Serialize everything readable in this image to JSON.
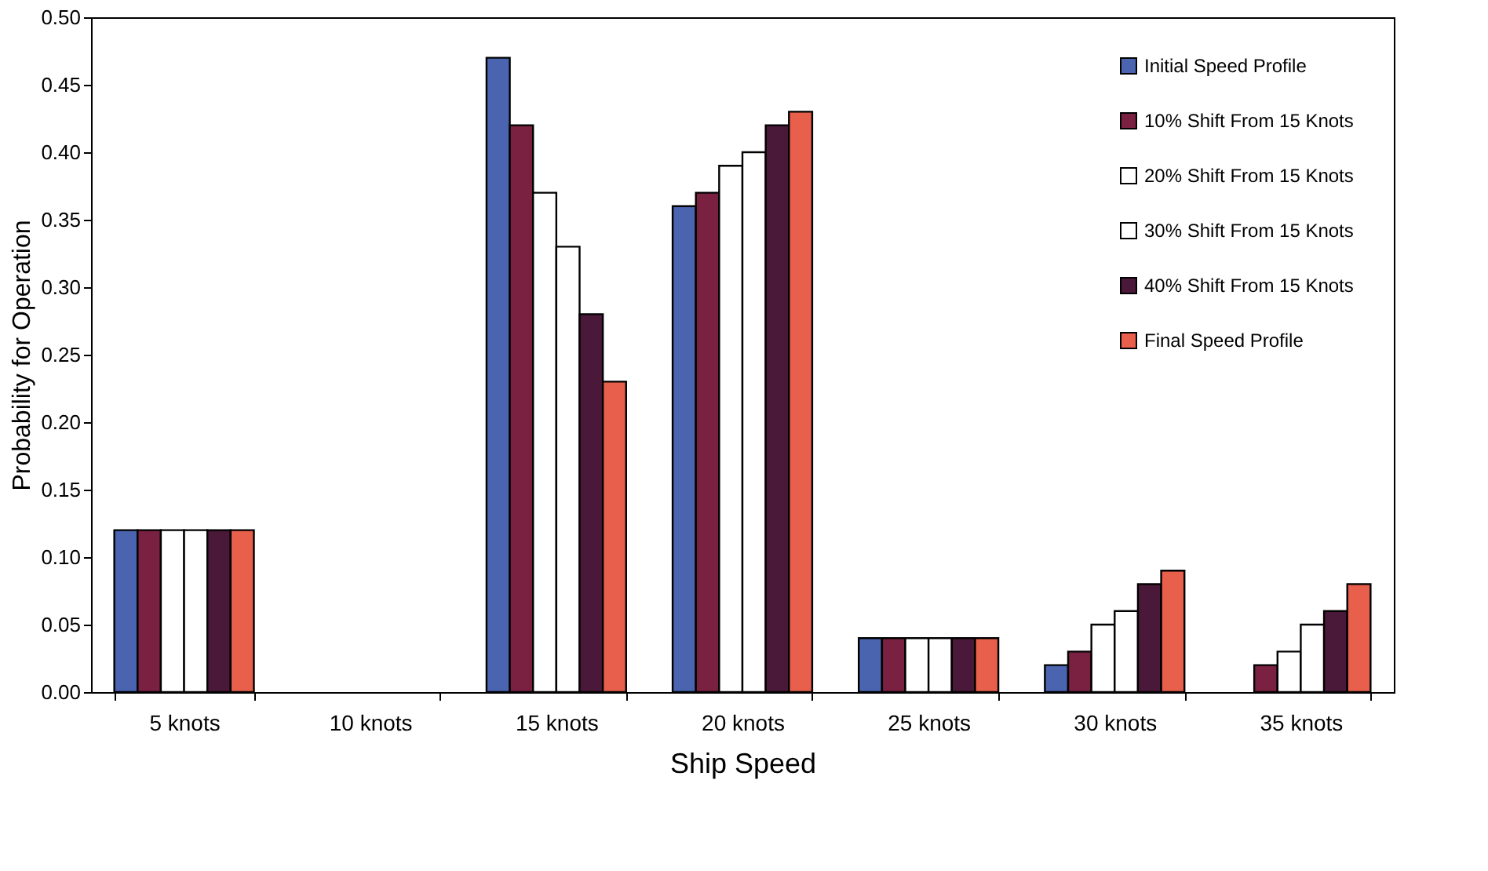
{
  "chart_data": {
    "type": "bar",
    "xlabel": "Ship Speed",
    "ylabel": "Probability for Operation",
    "categories": [
      "5 knots",
      "10 knots",
      "15 knots",
      "20 knots",
      "25 knots",
      "30 knots",
      "35 knots"
    ],
    "series": [
      {
        "name": "Initial Speed Profile",
        "color": "#4a64b0",
        "values": [
          0.12,
          0,
          0.47,
          0.36,
          0.04,
          0.02,
          0
        ]
      },
      {
        "name": "10% Shift From 15 Knots",
        "color": "#7a2040",
        "values": [
          0.12,
          0,
          0.42,
          0.37,
          0.04,
          0.03,
          0.02
        ]
      },
      {
        "name": "20% Shift From 15 Knots",
        "color": "#ffffff",
        "values": [
          0.12,
          0,
          0.37,
          0.39,
          0.04,
          0.05,
          0.03
        ]
      },
      {
        "name": "30% Shift From 15 Knots",
        "color": "#ffffff",
        "values": [
          0.12,
          0,
          0.33,
          0.4,
          0.04,
          0.06,
          0.05
        ]
      },
      {
        "name": "40% Shift From 15 Knots",
        "color": "#4a1838",
        "values": [
          0.12,
          0,
          0.28,
          0.42,
          0.04,
          0.08,
          0.06
        ]
      },
      {
        "name": "Final Speed Profile",
        "color": "#e8604c",
        "values": [
          0.12,
          0,
          0.23,
          0.43,
          0.04,
          0.09,
          0.08
        ]
      }
    ],
    "ylim": [
      0,
      0.5
    ],
    "yticks": [
      {
        "value": 0,
        "label": "0.00"
      },
      {
        "value": 0.05,
        "label": "0.05"
      },
      {
        "value": 0.1,
        "label": "0.10"
      },
      {
        "value": 0.15,
        "label": "0.15"
      },
      {
        "value": 0.2,
        "label": "0.20"
      },
      {
        "value": 0.25,
        "label": "0.25"
      },
      {
        "value": 0.3,
        "label": "0.30"
      },
      {
        "value": 0.35,
        "label": "0.35"
      },
      {
        "value": 0.4,
        "label": "0.40"
      },
      {
        "value": 0.45,
        "label": "0.45"
      },
      {
        "value": 0.5,
        "label": "0.50"
      }
    ],
    "grid": false,
    "legend": "top right"
  }
}
